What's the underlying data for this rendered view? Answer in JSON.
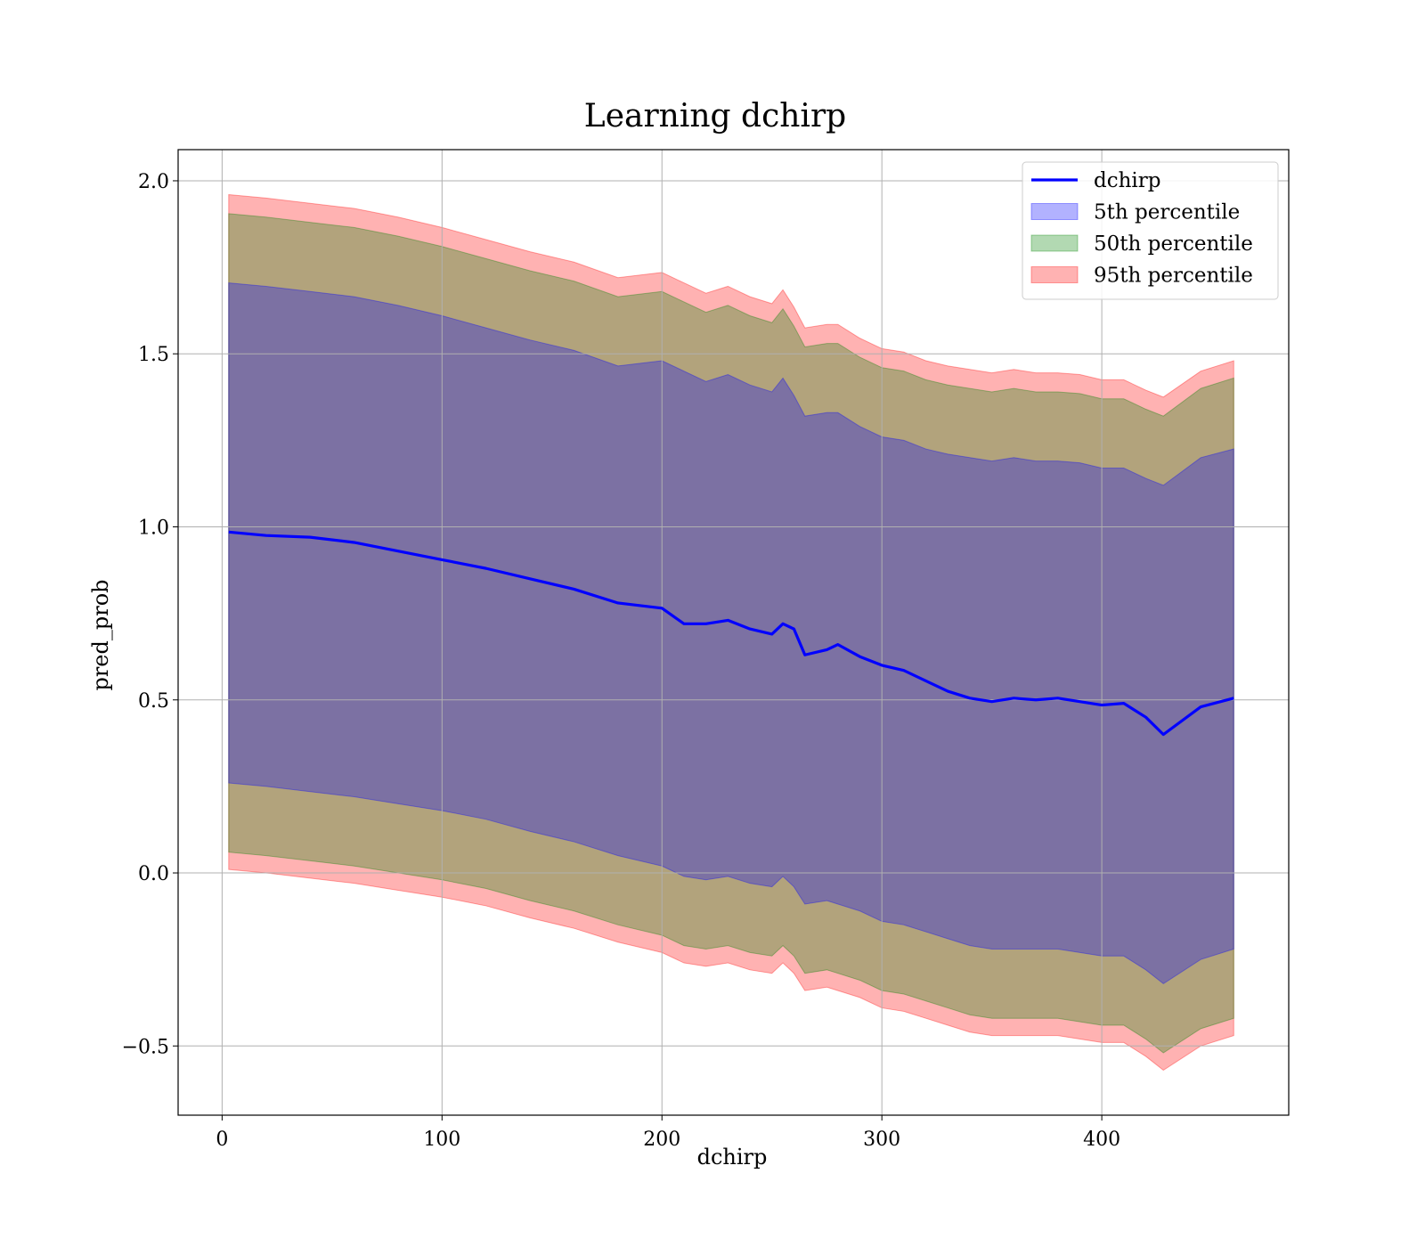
{
  "chart_data": {
    "type": "area",
    "title": "Learning dchirp",
    "xlabel": "dchirp",
    "ylabel": "pred_prob",
    "xlim": [
      -20,
      485
    ],
    "ylim": [
      -0.7,
      2.09
    ],
    "xticks": [
      0,
      100,
      200,
      300,
      400
    ],
    "yticks": [
      -0.5,
      0.0,
      0.5,
      1.0,
      1.5,
      2.0
    ],
    "xtick_labels": [
      "0",
      "100",
      "200",
      "300",
      "400"
    ],
    "ytick_labels": [
      "−0.5",
      "0.0",
      "0.5",
      "1.0",
      "1.5",
      "2.0"
    ],
    "grid": true,
    "legend_position": "top-right",
    "x": [
      3,
      20,
      40,
      60,
      80,
      100,
      120,
      140,
      160,
      180,
      200,
      210,
      220,
      230,
      240,
      250,
      255,
      260,
      265,
      275,
      280,
      290,
      300,
      310,
      320,
      330,
      340,
      350,
      360,
      370,
      380,
      390,
      400,
      410,
      420,
      428,
      445,
      460
    ],
    "series": [
      {
        "name": "dchirp",
        "kind": "line",
        "color": "#0000ff",
        "values": [
          0.985,
          0.975,
          0.97,
          0.955,
          0.93,
          0.905,
          0.88,
          0.85,
          0.82,
          0.78,
          0.765,
          0.72,
          0.72,
          0.73,
          0.705,
          0.69,
          0.72,
          0.705,
          0.63,
          0.645,
          0.66,
          0.625,
          0.6,
          0.585,
          0.555,
          0.525,
          0.505,
          0.495,
          0.505,
          0.5,
          0.505,
          0.495,
          0.485,
          0.49,
          0.45,
          0.4,
          0.48,
          0.505
        ]
      },
      {
        "name": "5th percentile",
        "kind": "band",
        "color": "#0000ff",
        "upper": [
          1.705,
          1.695,
          1.68,
          1.665,
          1.64,
          1.61,
          1.575,
          1.54,
          1.51,
          1.465,
          1.48,
          1.45,
          1.42,
          1.44,
          1.41,
          1.39,
          1.43,
          1.38,
          1.32,
          1.33,
          1.33,
          1.29,
          1.26,
          1.25,
          1.225,
          1.21,
          1.2,
          1.19,
          1.2,
          1.19,
          1.19,
          1.185,
          1.17,
          1.17,
          1.14,
          1.12,
          1.2,
          1.225
        ],
        "lower": [
          0.26,
          0.25,
          0.235,
          0.22,
          0.2,
          0.18,
          0.155,
          0.12,
          0.09,
          0.05,
          0.02,
          -0.01,
          -0.02,
          -0.01,
          -0.03,
          -0.04,
          -0.01,
          -0.04,
          -0.09,
          -0.08,
          -0.09,
          -0.11,
          -0.14,
          -0.15,
          -0.17,
          -0.19,
          -0.21,
          -0.22,
          -0.22,
          -0.22,
          -0.22,
          -0.23,
          -0.24,
          -0.24,
          -0.28,
          -0.32,
          -0.25,
          -0.22
        ]
      },
      {
        "name": "50th percentile",
        "kind": "band",
        "color": "#008000",
        "upper": [
          1.905,
          1.895,
          1.88,
          1.865,
          1.84,
          1.81,
          1.775,
          1.74,
          1.71,
          1.665,
          1.68,
          1.65,
          1.62,
          1.64,
          1.61,
          1.59,
          1.63,
          1.58,
          1.52,
          1.53,
          1.53,
          1.49,
          1.46,
          1.45,
          1.425,
          1.41,
          1.4,
          1.39,
          1.4,
          1.39,
          1.39,
          1.385,
          1.37,
          1.37,
          1.34,
          1.32,
          1.4,
          1.43
        ],
        "lower": [
          0.06,
          0.05,
          0.035,
          0.02,
          0.0,
          -0.02,
          -0.045,
          -0.08,
          -0.11,
          -0.15,
          -0.18,
          -0.21,
          -0.22,
          -0.21,
          -0.23,
          -0.24,
          -0.21,
          -0.24,
          -0.29,
          -0.28,
          -0.29,
          -0.31,
          -0.34,
          -0.35,
          -0.37,
          -0.39,
          -0.41,
          -0.42,
          -0.42,
          -0.42,
          -0.42,
          -0.43,
          -0.44,
          -0.44,
          -0.48,
          -0.52,
          -0.45,
          -0.42
        ]
      },
      {
        "name": "95th percentile",
        "kind": "band",
        "color": "#ff0000",
        "upper": [
          1.96,
          1.95,
          1.935,
          1.92,
          1.895,
          1.865,
          1.83,
          1.795,
          1.765,
          1.72,
          1.735,
          1.705,
          1.675,
          1.695,
          1.665,
          1.645,
          1.685,
          1.635,
          1.575,
          1.585,
          1.585,
          1.545,
          1.515,
          1.505,
          1.48,
          1.465,
          1.455,
          1.445,
          1.455,
          1.445,
          1.445,
          1.44,
          1.425,
          1.425,
          1.395,
          1.375,
          1.45,
          1.48
        ],
        "lower": [
          0.01,
          0.0,
          -0.015,
          -0.03,
          -0.05,
          -0.07,
          -0.095,
          -0.13,
          -0.16,
          -0.2,
          -0.23,
          -0.26,
          -0.27,
          -0.26,
          -0.28,
          -0.29,
          -0.26,
          -0.29,
          -0.34,
          -0.33,
          -0.34,
          -0.36,
          -0.39,
          -0.4,
          -0.42,
          -0.44,
          -0.46,
          -0.47,
          -0.47,
          -0.47,
          -0.47,
          -0.48,
          -0.49,
          -0.49,
          -0.53,
          -0.57,
          -0.5,
          -0.47
        ]
      }
    ]
  }
}
